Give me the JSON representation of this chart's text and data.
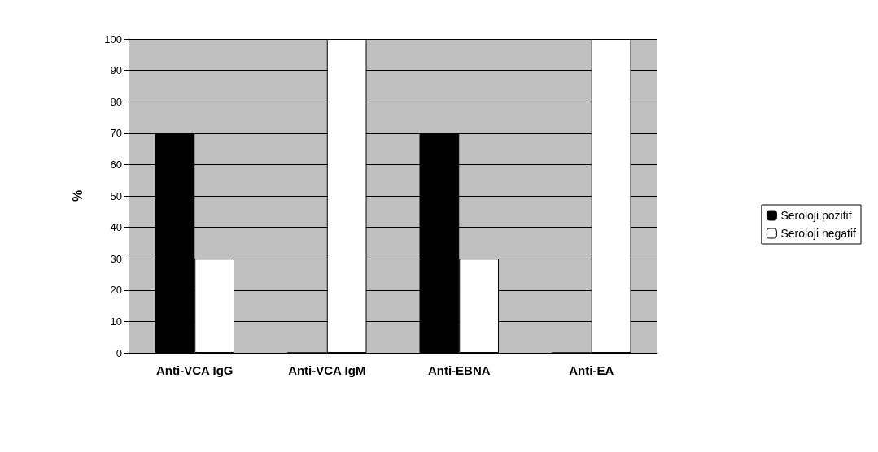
{
  "chart_data": {
    "type": "bar",
    "ylabel": "%",
    "categories": [
      "Anti-VCA IgG",
      "Anti-VCA IgM",
      "Anti-EBNA",
      "Anti-EA"
    ],
    "series": [
      {
        "name": "Seroloji pozitif",
        "color": "#000000",
        "values": [
          70,
          0,
          70,
          0
        ]
      },
      {
        "name": "Seroloji negatif",
        "color": "#ffffff",
        "values": [
          30,
          100,
          30,
          100
        ]
      }
    ],
    "ylim": [
      0,
      100
    ],
    "yticks": [
      0,
      10,
      20,
      30,
      40,
      50,
      60,
      70,
      80,
      90,
      100
    ],
    "grid": "y",
    "legend": "right"
  }
}
